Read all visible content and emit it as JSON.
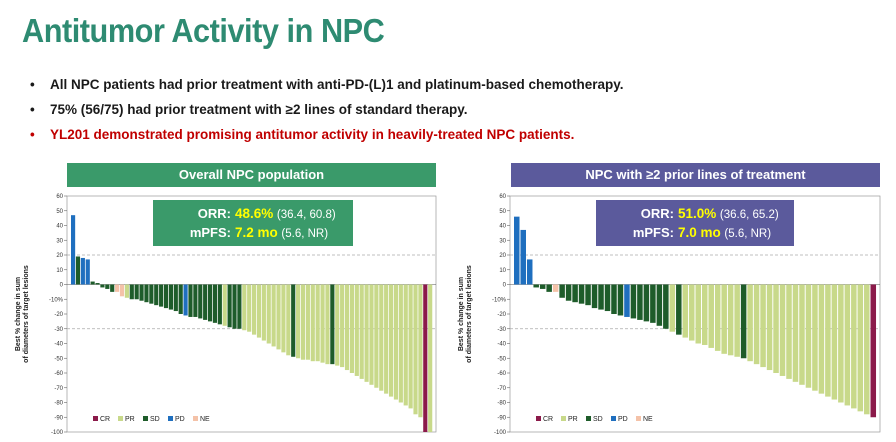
{
  "title": "Antitumor Activity in NPC",
  "bullets": [
    "All NPC patients had prior treatment with anti-PD-(L)1 and platinum-based chemotherapy.",
    "75% (56/75) had prior treatment with ≥2 lines of standard therapy.",
    "YL201 demonstrated promising antitumor activity in heavily-treated NPC patients."
  ],
  "bullet_symbol": "•",
  "colors": {
    "title": "#2e8b72",
    "red": "#c00000",
    "green_panel": "#3a9a6a",
    "purple_panel": "#5b5a9c",
    "CR": "#8b1a4a",
    "PR": "#c8d98a",
    "SD": "#1e5c2a",
    "PD": "#1f6fbf",
    "NE": "#f4c2a8"
  },
  "panels": {
    "left": {
      "header": "Overall NPC population",
      "orr_label": "ORR:",
      "orr_value": "48.6%",
      "orr_ci": "(36.4, 60.8)",
      "mpfs_label": "mPFS:",
      "mpfs_value": "7.2 mo",
      "mpfs_ci": "(5.6, NR)"
    },
    "right": {
      "header": "NPC with ≥2 prior lines of treatment",
      "orr_label": "ORR:",
      "orr_value": "51.0%",
      "orr_ci": "(36.6, 65.2)",
      "mpfs_label": "mPFS:",
      "mpfs_value": "7.0 mo",
      "mpfs_ci": "(5.6, NR)"
    }
  },
  "chart_data": [
    {
      "type": "bar",
      "title": "Overall NPC population",
      "ylabel": "Best % change in sum of diameters of target lesions",
      "ylim": [
        -100,
        60
      ],
      "yticks": [
        "60",
        "50",
        "40",
        "30",
        "20",
        "10",
        "0",
        "-10%",
        "-20",
        "-30",
        "-40",
        "-50",
        "-60",
        "-70",
        "-80",
        "-90",
        "-100"
      ],
      "reference_lines": [
        20,
        -30
      ],
      "legend": [
        "CR",
        "PR",
        "SD",
        "PD",
        "NE"
      ],
      "values": [
        47,
        19,
        18,
        17,
        2,
        1,
        -2,
        -3,
        -5,
        -5,
        -8,
        -9,
        -10,
        -10,
        -11,
        -12,
        -13,
        -14,
        -15,
        -16,
        -17,
        -18,
        -20,
        -21,
        -22,
        -22,
        -23,
        -24,
        -25,
        -26,
        -27,
        -28,
        -29,
        -30,
        -30,
        -31,
        -32,
        -34,
        -36,
        -38,
        -40,
        -42,
        -44,
        -46,
        -48,
        -49,
        -50,
        -51,
        -51,
        -52,
        -52,
        -53,
        -54,
        -54,
        -55,
        -56,
        -58,
        -60,
        -62,
        -64,
        -66,
        -68,
        -70,
        -72,
        -74,
        -76,
        -78,
        -80,
        -82,
        -84,
        -88,
        -90,
        -100,
        -100
      ],
      "status": [
        "PD",
        "SD",
        "PD",
        "PD",
        "SD",
        "SD",
        "SD",
        "SD",
        "SD",
        "NE",
        "NE",
        "PR",
        "SD",
        "SD",
        "SD",
        "SD",
        "SD",
        "SD",
        "SD",
        "SD",
        "SD",
        "SD",
        "SD",
        "PD",
        "SD",
        "SD",
        "SD",
        "SD",
        "SD",
        "SD",
        "SD",
        "PR",
        "SD",
        "SD",
        "SD",
        "PR",
        "PR",
        "PR",
        "PR",
        "PR",
        "PR",
        "PR",
        "PR",
        "PR",
        "PR",
        "SD",
        "PR",
        "PR",
        "PR",
        "PR",
        "PR",
        "PR",
        "PR",
        "SD",
        "PR",
        "PR",
        "PR",
        "PR",
        "PR",
        "PR",
        "PR",
        "PR",
        "PR",
        "PR",
        "PR",
        "PR",
        "PR",
        "PR",
        "PR",
        "PR",
        "PR",
        "PR",
        "CR",
        "PR"
      ]
    },
    {
      "type": "bar",
      "title": "NPC with ≥2 prior lines of treatment",
      "ylabel": "Best % change in sum of diameters of target lesions",
      "ylim": [
        -100,
        60
      ],
      "yticks": [
        "60",
        "50",
        "40",
        "30",
        "20",
        "10",
        "0",
        "-10%",
        "-20",
        "-30",
        "-40",
        "-50",
        "-60",
        "-70",
        "-80",
        "-90",
        "-100"
      ],
      "reference_lines": [
        20,
        -30
      ],
      "legend": [
        "CR",
        "PR",
        "SD",
        "PD",
        "NE"
      ],
      "values": [
        46,
        37,
        17,
        -2,
        -3,
        -5,
        -5,
        -9,
        -11,
        -12,
        -13,
        -14,
        -16,
        -17,
        -18,
        -20,
        -21,
        -22,
        -23,
        -24,
        -25,
        -26,
        -28,
        -30,
        -32,
        -34,
        -36,
        -38,
        -40,
        -41,
        -43,
        -45,
        -47,
        -48,
        -49,
        -50,
        -52,
        -54,
        -56,
        -58,
        -60,
        -62,
        -64,
        -66,
        -68,
        -70,
        -72,
        -74,
        -76,
        -78,
        -80,
        -82,
        -84,
        -86,
        -88,
        -90
      ],
      "status": [
        "PD",
        "PD",
        "PD",
        "SD",
        "SD",
        "SD",
        "NE",
        "SD",
        "SD",
        "SD",
        "SD",
        "SD",
        "SD",
        "SD",
        "SD",
        "SD",
        "SD",
        "PD",
        "SD",
        "SD",
        "SD",
        "SD",
        "SD",
        "SD",
        "PR",
        "SD",
        "PR",
        "PR",
        "PR",
        "PR",
        "PR",
        "PR",
        "PR",
        "PR",
        "PR",
        "SD",
        "PR",
        "PR",
        "PR",
        "PR",
        "PR",
        "PR",
        "PR",
        "PR",
        "PR",
        "PR",
        "PR",
        "PR",
        "PR",
        "PR",
        "PR",
        "PR",
        "PR",
        "PR",
        "PR",
        "CR"
      ]
    }
  ]
}
